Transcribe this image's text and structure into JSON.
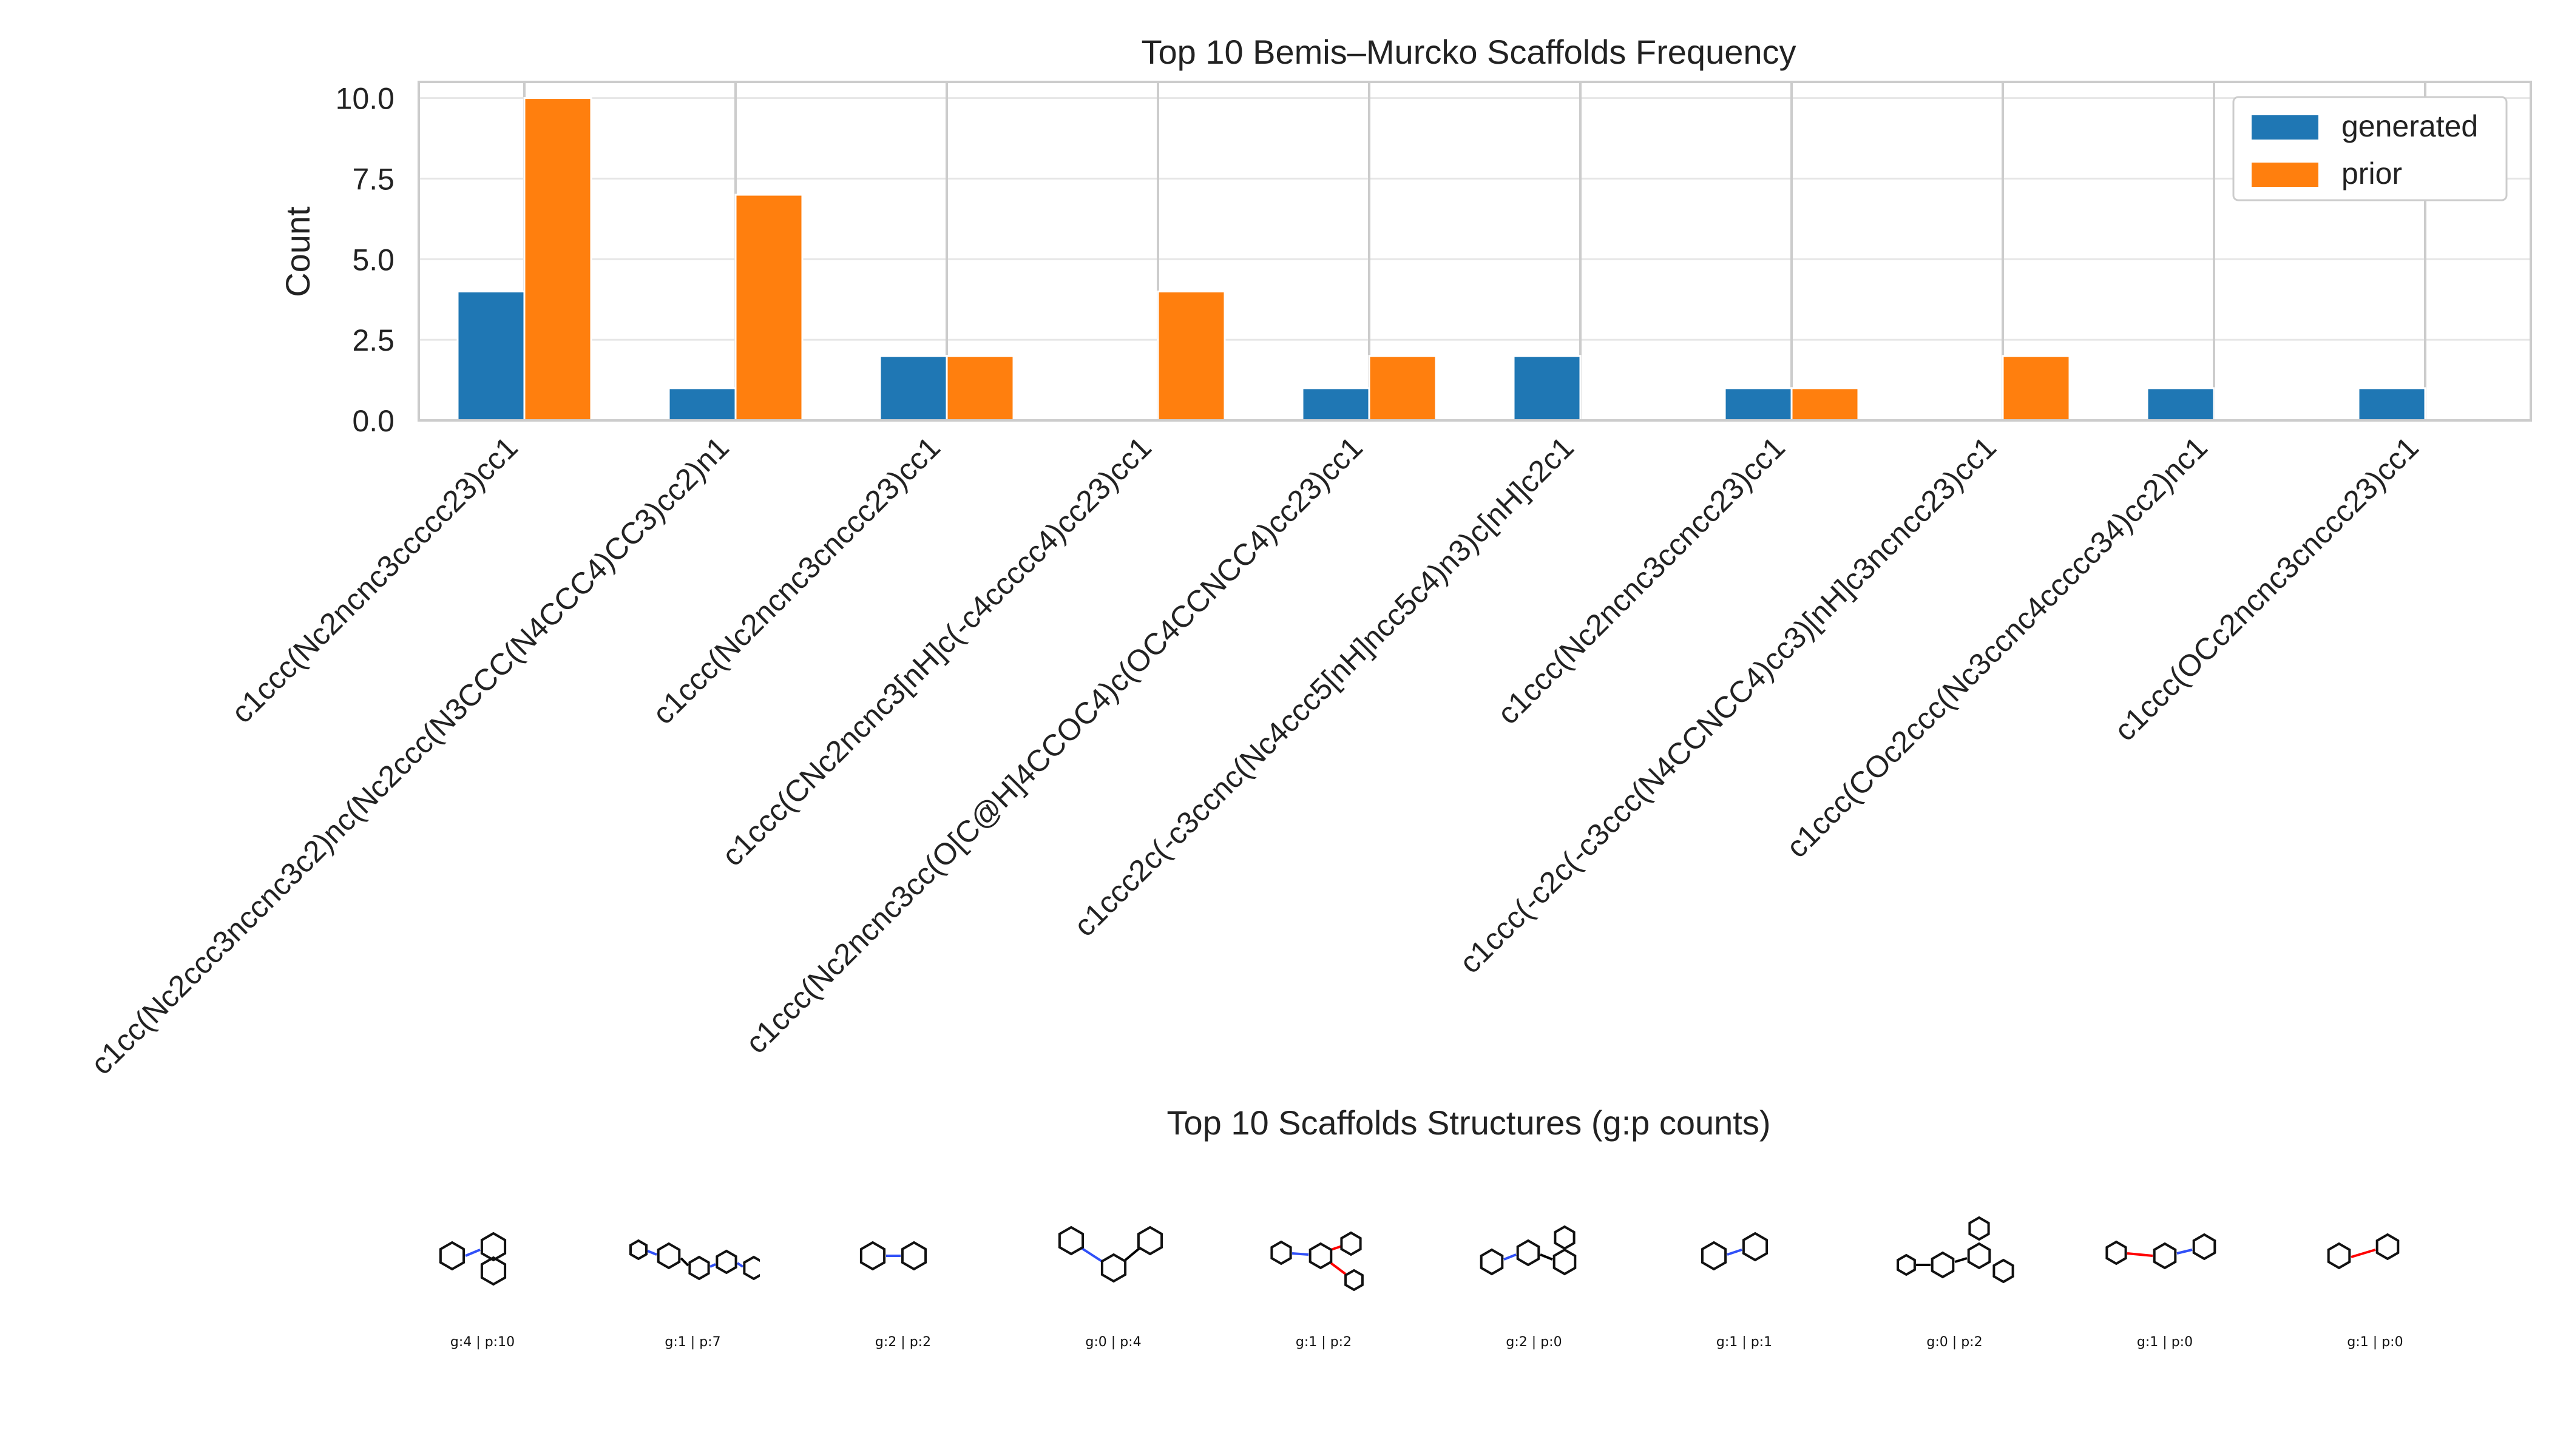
{
  "chart_data": {
    "type": "bar",
    "title": "Top 10 Bemis–Murcko Scaffolds Frequency",
    "xlabel": "",
    "ylabel": "Count",
    "ylim": [
      0,
      10.5
    ],
    "yticks": [
      "0.0",
      "2.5",
      "5.0",
      "7.5",
      "10.0"
    ],
    "grid": true,
    "legend_position": "top-right",
    "categories": [
      "c1ccc(Nc2ncnc3ccccc23)cc1",
      "c1cc(Nc2ccc3nccnc3c2)nc(Nc2ccc(N3CCC(N4CCC4)CC3)cc2)n1",
      "c1ccc(Nc2ncnc3cnccc23)cc1",
      "c1ccc(CNc2ncnc3[nH]c(-c4ccccc4)cc23)cc1",
      "c1ccc(Nc2ncnc3cc(O[C@H]4CCOC4)c(OC4CCNCC4)cc23)cc1",
      "c1ccc2c(-c3ccnc(Nc4ccc5[nH]ncc5c4)n3)c[nH]c2c1",
      "c1ccc(Nc2ncnc3ccncc23)cc1",
      "c1ccc(-c2c(-c3ccc(N4CCNCC4)cc3)[nH]c3ncncc23)cc1",
      "c1ccc(COc2ccc(Nc3ccnc4ccccc34)cc2)nc1",
      "c1ccc(OCc2ncnc3cnccc23)cc1"
    ],
    "series": [
      {
        "name": "generated",
        "color": "#1f77b4",
        "values": [
          4,
          1,
          2,
          0,
          1,
          2,
          1,
          0,
          1,
          1
        ]
      },
      {
        "name": "prior",
        "color": "#ff7f0e",
        "values": [
          10,
          7,
          2,
          4,
          2,
          0,
          1,
          2,
          0,
          0
        ]
      }
    ]
  },
  "structures": {
    "title": "Top 10 Scaffolds Structures (g:p counts)",
    "captions": [
      "g:4 | p:10",
      "g:1 | p:7",
      "g:2 | p:2",
      "g:0 | p:4",
      "g:1 | p:2",
      "g:2 | p:0",
      "g:1 | p:1",
      "g:0 | p:2",
      "g:1 | p:0",
      "g:1 | p:0"
    ]
  }
}
